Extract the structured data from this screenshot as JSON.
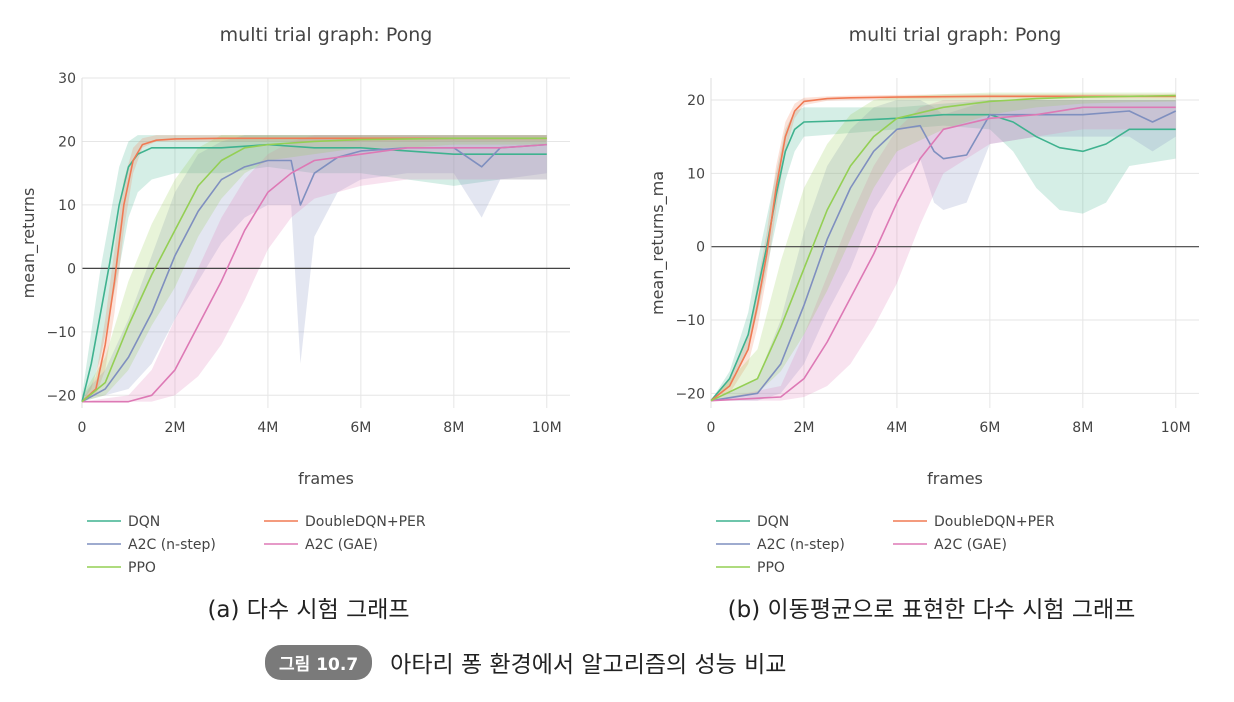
{
  "colors": {
    "DQN": "#3fb28f",
    "DoubleDQN+PER": "#f07a54",
    "A2C (n-step)": "#7f8fbf",
    "A2C (GAE)": "#dd79b5",
    "PPO": "#94cf54",
    "zeroline": "#444444",
    "grid": "#e6e6e6",
    "badge": "#7a7a7a"
  },
  "captions": {
    "a": "(a) 다수 시험 그래프",
    "b": "(b) 이동평균으로 표현한 다수 시험 그래프"
  },
  "figure": {
    "number": "그림 10.7",
    "title": "아타리 퐁 환경에서 알고리즘의 성능 비교"
  },
  "chart_data": [
    {
      "type": "line",
      "title": "multi trial graph: Pong",
      "xlabel": "frames",
      "ylabel": "mean_returns",
      "xlim": [
        0,
        10500000
      ],
      "ylim": [
        -22,
        30
      ],
      "xticks": [
        0,
        2000000,
        4000000,
        6000000,
        8000000,
        10000000
      ],
      "xtick_labels": [
        "0",
        "2M",
        "4M",
        "6M",
        "8M",
        "10M"
      ],
      "yticks": [
        -20,
        -10,
        0,
        10,
        20,
        30
      ],
      "ytick_labels": [
        "−20",
        "−10",
        "0",
        "10",
        "20",
        "30"
      ],
      "grid": true,
      "legend_position": "bottom",
      "series": [
        {
          "name": "DQN",
          "x": [
            0,
            200000,
            400000,
            600000,
            800000,
            1000000,
            1200000,
            1500000,
            2000000,
            3000000,
            4000000,
            5000000,
            6000000,
            7000000,
            8000000,
            9000000,
            10000000
          ],
          "y": [
            -21,
            -15,
            -7,
            1,
            10,
            16,
            18,
            19,
            19,
            19,
            19.5,
            19,
            19,
            18.5,
            18,
            18,
            18
          ],
          "band_lower": [
            -21,
            -19,
            -14,
            -7,
            0,
            8,
            12,
            14,
            15,
            15,
            16,
            15,
            15,
            14,
            13,
            14,
            14
          ],
          "band_upper": [
            -20,
            -10,
            0,
            8,
            16,
            20,
            21,
            21,
            21,
            21,
            21,
            21,
            21,
            21,
            21,
            21,
            21
          ]
        },
        {
          "name": "DoubleDQN+PER",
          "x": [
            0,
            300000,
            500000,
            700000,
            900000,
            1100000,
            1300000,
            1600000,
            2000000,
            3000000,
            4000000,
            6000000,
            8000000,
            10000000
          ],
          "y": [
            -21,
            -19,
            -12,
            -2,
            10,
            17,
            19.5,
            20.2,
            20.4,
            20.5,
            20.5,
            20.5,
            20.5,
            20.5
          ],
          "band_lower": [
            -21,
            -20,
            -16,
            -7,
            6,
            15,
            19,
            20,
            20,
            20,
            20,
            20,
            20,
            20
          ],
          "band_upper": [
            -21,
            -17,
            -8,
            3,
            14,
            19,
            20.5,
            21,
            21,
            21,
            21,
            21,
            21,
            21
          ]
        },
        {
          "name": "A2C (n-step)",
          "x": [
            0,
            500000,
            1000000,
            1500000,
            2000000,
            2500000,
            3000000,
            3500000,
            4000000,
            4500000,
            4700000,
            5000000,
            5500000,
            6000000,
            7000000,
            8000000,
            8600000,
            9000000,
            10000000
          ],
          "y": [
            -21,
            -19,
            -14,
            -7,
            2,
            9,
            14,
            16,
            17,
            17,
            10,
            15,
            17.5,
            18.5,
            19,
            19,
            16,
            19,
            19.5
          ],
          "band_lower": [
            -21,
            -20,
            -19,
            -15,
            -8,
            -2,
            4,
            8,
            10,
            10,
            -15,
            5,
            12,
            14,
            15,
            15,
            8,
            14,
            15
          ],
          "band_upper": [
            -20,
            -16,
            -8,
            2,
            12,
            18,
            20,
            21,
            21,
            21,
            21,
            21,
            21,
            21,
            21,
            21,
            21,
            21,
            21
          ]
        },
        {
          "name": "A2C (GAE)",
          "x": [
            0,
            1000000,
            1500000,
            2000000,
            2500000,
            3000000,
            3500000,
            4000000,
            4500000,
            5000000,
            6000000,
            7000000,
            8000000,
            9000000,
            10000000
          ],
          "y": [
            -21,
            -21,
            -20,
            -16,
            -9,
            -2,
            6,
            12,
            15,
            17,
            18,
            19,
            19,
            19,
            19.5
          ],
          "band_lower": [
            -21,
            -21,
            -21,
            -20,
            -17,
            -12,
            -5,
            3,
            8,
            11,
            13,
            14,
            14,
            14,
            14
          ],
          "band_upper": [
            -21,
            -20,
            -16,
            -8,
            0,
            8,
            14,
            18,
            20,
            21,
            21,
            21,
            21,
            21,
            21
          ]
        },
        {
          "name": "PPO",
          "x": [
            0,
            500000,
            1000000,
            1500000,
            2000000,
            2500000,
            3000000,
            3500000,
            4000000,
            5000000,
            6000000,
            7000000,
            8000000,
            9000000,
            10000000
          ],
          "y": [
            -21,
            -18,
            -9,
            -1,
            6,
            13,
            17,
            19,
            19.5,
            20,
            20.3,
            20.4,
            20.5,
            20.5,
            20.5
          ],
          "band_lower": [
            -21,
            -20,
            -16,
            -9,
            -3,
            5,
            11,
            15,
            17,
            18,
            19,
            19,
            19.5,
            19.5,
            19.5
          ],
          "band_upper": [
            -20,
            -14,
            -2,
            7,
            14,
            19,
            21,
            21,
            21,
            21,
            21,
            21,
            21,
            21,
            21
          ]
        }
      ]
    },
    {
      "type": "line",
      "title": "multi trial graph: Pong",
      "xlabel": "frames",
      "ylabel": "mean_returns_ma",
      "xlim": [
        0,
        10500000
      ],
      "ylim": [
        -22,
        23
      ],
      "xticks": [
        0,
        2000000,
        4000000,
        6000000,
        8000000,
        10000000
      ],
      "xtick_labels": [
        "0",
        "2M",
        "4M",
        "6M",
        "8M",
        "10M"
      ],
      "yticks": [
        -20,
        -10,
        0,
        10,
        20
      ],
      "ytick_labels": [
        "−20",
        "−10",
        "0",
        "10",
        "20"
      ],
      "grid": true,
      "legend_position": "bottom",
      "series": [
        {
          "name": "DQN",
          "x": [
            0,
            400000,
            800000,
            1000000,
            1200000,
            1400000,
            1600000,
            1800000,
            2000000,
            3000000,
            4000000,
            5000000,
            6000000,
            6500000,
            7000000,
            7500000,
            8000000,
            8500000,
            9000000,
            10000000
          ],
          "y": [
            -21,
            -18,
            -12,
            -6,
            0,
            7,
            13,
            16,
            17,
            17.2,
            17.5,
            18,
            18,
            17,
            15,
            13.5,
            13,
            14,
            16,
            16
          ],
          "band_lower": [
            -21,
            -19,
            -14,
            -9,
            -3,
            3,
            9,
            13,
            15,
            15.5,
            16,
            16.5,
            16,
            13,
            8,
            5,
            4.5,
            6,
            11,
            12
          ],
          "band_upper": [
            -21,
            -17,
            -9,
            -2,
            4,
            10,
            16,
            18.5,
            19,
            19,
            19,
            19.5,
            20,
            20,
            20,
            20,
            20,
            20,
            20,
            20
          ]
        },
        {
          "name": "DoubleDQN+PER",
          "x": [
            0,
            400000,
            800000,
            1000000,
            1200000,
            1400000,
            1600000,
            1800000,
            2000000,
            2500000,
            3000000,
            4000000,
            6000000,
            8000000,
            10000000
          ],
          "y": [
            -21,
            -19,
            -14,
            -8,
            -1,
            8,
            15,
            18.5,
            19.8,
            20.2,
            20.3,
            20.4,
            20.5,
            20.5,
            20.5
          ],
          "band_lower": [
            -21,
            -20,
            -16,
            -11,
            -4,
            5,
            13,
            17.5,
            19.3,
            19.9,
            20,
            20.1,
            20.2,
            20.2,
            20.2
          ],
          "band_upper": [
            -21,
            -18,
            -12,
            -5,
            2,
            11,
            17,
            19.5,
            20.3,
            20.5,
            20.6,
            20.7,
            20.8,
            20.8,
            20.8
          ]
        },
        {
          "name": "A2C (n-step)",
          "x": [
            0,
            1000000,
            1500000,
            2000000,
            2500000,
            3000000,
            3500000,
            4000000,
            4500000,
            4800000,
            5000000,
            5500000,
            6000000,
            7000000,
            8000000,
            9000000,
            9500000,
            10000000
          ],
          "y": [
            -21,
            -20,
            -16,
            -8,
            1,
            8,
            13,
            16,
            16.5,
            13,
            12,
            12.5,
            18,
            18,
            18,
            18.5,
            17,
            18.5
          ],
          "band_lower": [
            -21,
            -21,
            -20,
            -16,
            -9,
            -3,
            5,
            10,
            12,
            6,
            5,
            6,
            14,
            15,
            15,
            15,
            13,
            15
          ],
          "band_upper": [
            -21,
            -18,
            -10,
            2,
            11,
            16,
            19,
            20,
            20,
            19,
            18,
            19,
            20,
            20,
            20,
            20,
            20,
            20
          ]
        },
        {
          "name": "A2C (GAE)",
          "x": [
            0,
            1500000,
            2000000,
            2500000,
            3000000,
            3500000,
            4000000,
            4500000,
            5000000,
            6000000,
            7000000,
            8000000,
            9000000,
            10000000
          ],
          "y": [
            -21,
            -20.5,
            -18,
            -13,
            -7,
            -1,
            6,
            12,
            16,
            17.5,
            18,
            19,
            19,
            19
          ],
          "band_lower": [
            -21,
            -21,
            -20.5,
            -19,
            -16,
            -11,
            -5,
            3,
            10,
            14,
            15,
            16,
            16,
            16
          ],
          "band_upper": [
            -21,
            -19,
            -12,
            -4,
            4,
            11,
            16,
            19,
            20,
            20,
            20,
            20,
            20,
            20
          ]
        },
        {
          "name": "PPO",
          "x": [
            0,
            1000000,
            1500000,
            2000000,
            2500000,
            3000000,
            3500000,
            4000000,
            5000000,
            6000000,
            7000000,
            8000000,
            9000000,
            10000000
          ],
          "y": [
            -21,
            -18,
            -11,
            -3,
            5,
            11,
            15,
            17.5,
            19,
            19.8,
            20.2,
            20.4,
            20.5,
            20.6
          ],
          "band_lower": [
            -21,
            -20,
            -17,
            -12,
            -6,
            1,
            8,
            13,
            16,
            18,
            19,
            19.5,
            19.7,
            19.8
          ],
          "band_upper": [
            -21,
            -14,
            -2,
            8,
            14,
            18,
            20,
            20.5,
            20.8,
            21,
            21,
            21,
            21,
            21
          ]
        }
      ]
    }
  ]
}
